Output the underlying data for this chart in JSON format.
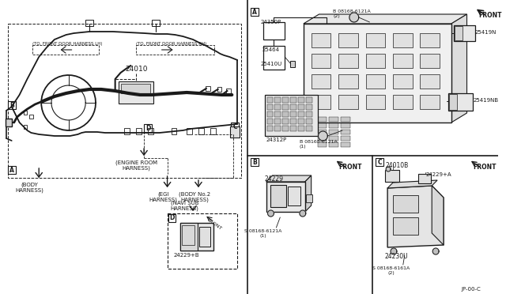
{
  "bg": "white",
  "lc": "#1a1a1a",
  "labels": {
    "main_harness": "24010",
    "body_harness": "(BODY\nHARNESS)",
    "engine_room": "(ENGINE ROOM\nHARNESS)",
    "egi": "(EGI\nHARNESS)",
    "body_no2": "(BODY No.2\nHARNESS)",
    "navi_sub": "(NAVI SUB\nHARNESS)",
    "front_door_lh": "(TO. FRONT DOOR HARNESS LH)",
    "front_door_rh": "(TO. FRONT DOOR HARNESS RH)",
    "p24350": "24350P",
    "p25464": "25464",
    "p25410": "25410U",
    "p24312": "24312P",
    "p25419n": "25419N",
    "p25419nb": "25419NB",
    "b08168_2": "B 08168-6121A\n(2)",
    "b08168_1": "B 08168-6121A\n(1)",
    "p24229b": "24229+B",
    "p24229": "24229",
    "s08168_1b": "S 08168-6121A\n(1)",
    "p24010b": "24010B",
    "p24229a": "24229+A",
    "p24230": "24230U",
    "s08168_2c": "S 08168-6161A\n(2)",
    "front": "FRONT",
    "part_no": "JP-00-C"
  }
}
